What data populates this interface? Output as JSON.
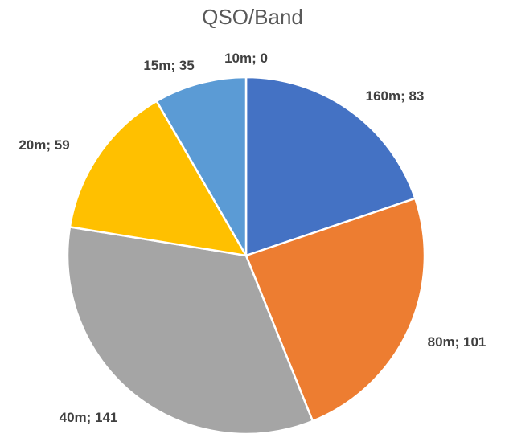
{
  "chart_data": {
    "type": "pie",
    "title": "QSO/Band",
    "slices": [
      {
        "name": "160m",
        "value": 83,
        "label": "160m; 83",
        "color": "#4472C4"
      },
      {
        "name": "80m",
        "value": 101,
        "label": "80m; 101",
        "color": "#ED7D31"
      },
      {
        "name": "40m",
        "value": 141,
        "label": "40m; 141",
        "color": "#A5A5A5"
      },
      {
        "name": "20m",
        "value": 59,
        "label": "20m; 59",
        "color": "#FFC000"
      },
      {
        "name": "15m",
        "value": 35,
        "label": "15m; 35",
        "color": "#5B9BD5"
      },
      {
        "name": "10m",
        "value": 0,
        "label": "10m; 0",
        "color": "#70AD47"
      }
    ],
    "start_angle_deg": 0,
    "direction": "clockwise",
    "legend": "none"
  }
}
